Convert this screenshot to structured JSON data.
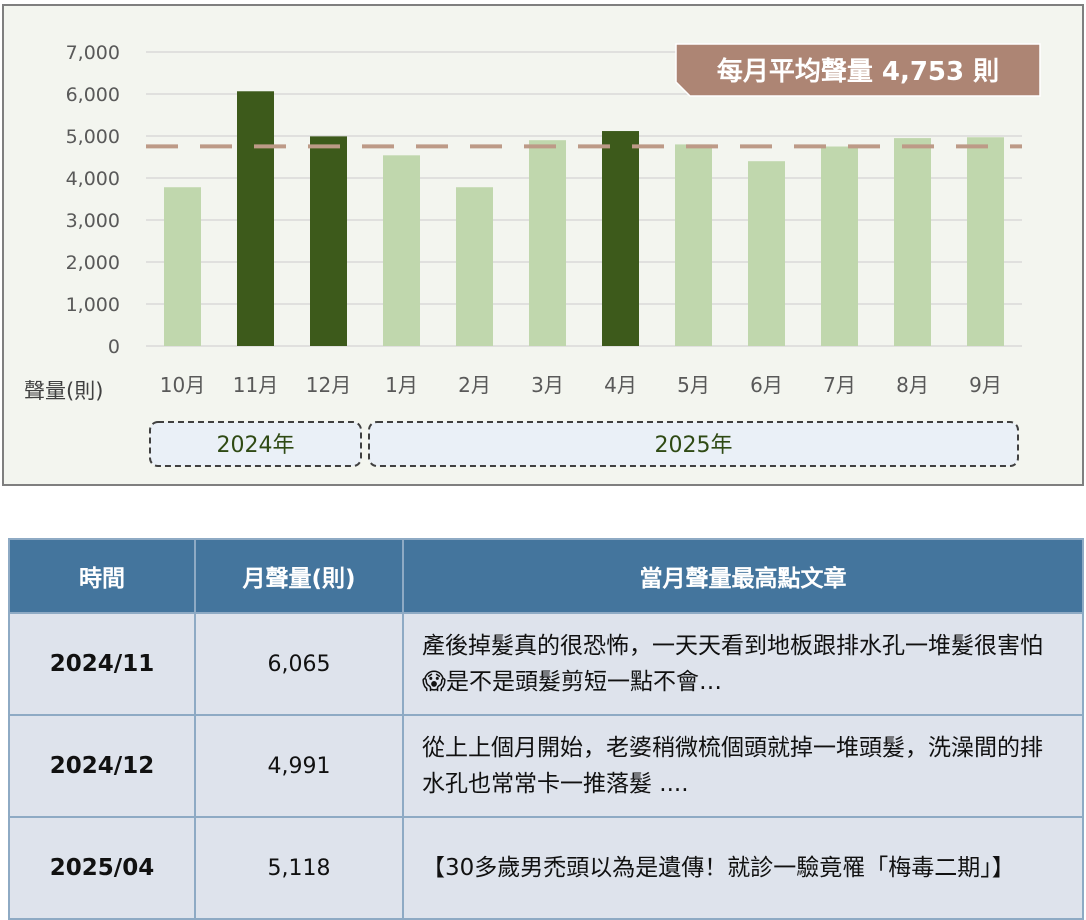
{
  "chart_data": {
    "type": "bar",
    "categories": [
      "10月",
      "11月",
      "12月",
      "1月",
      "2月",
      "3月",
      "4月",
      "5月",
      "6月",
      "7月",
      "8月",
      "9月"
    ],
    "values": [
      3780,
      6065,
      4991,
      4540,
      3780,
      4900,
      5118,
      4800,
      4400,
      4750,
      4950,
      4970
    ],
    "highlighted": [
      false,
      true,
      true,
      false,
      false,
      false,
      true,
      false,
      false,
      false,
      false,
      false
    ],
    "y_ticks": [
      "0",
      "1,000",
      "2,000",
      "3,000",
      "4,000",
      "5,000",
      "6,000",
      "7,000"
    ],
    "ylim": [
      0,
      7000
    ],
    "ylabel": "聲量(則)",
    "average_value": 4753,
    "average_label": "每月平均聲量 4,753 則",
    "year_groups": [
      {
        "label": "2024年",
        "first": 0,
        "last": 2
      },
      {
        "label": "2025年",
        "first": 3,
        "last": 11
      }
    ],
    "grid": true,
    "colors": {
      "bar_normal": "#c0d7ad",
      "bar_highlight": "#3d5a1b",
      "average_line": "#bd9a87",
      "average_badge": "#ad8574",
      "year_box_fill": "#eaf0f7",
      "panel_background": "#f3f5ef"
    }
  },
  "table": {
    "headers": [
      "時間",
      "月聲量(則)",
      "當月聲量最高點文章"
    ],
    "rows": [
      {
        "period": "2024/11",
        "volume": "6,065",
        "article": "產後掉髮真的很恐怖，一天天看到地板跟排水孔一堆髮很害怕😱是不是頭髮剪短一點不會…"
      },
      {
        "period": "2024/12",
        "volume": "4,991",
        "article": "從上上個月開始，老婆稍微梳個頭就掉一堆頭髮，洗澡間的排水孔也常常卡一推落髮 ...."
      },
      {
        "period": "2025/04",
        "volume": "5,118",
        "article": "【30多歲男禿頭以為是遺傳！就診一驗竟罹「梅毒二期」】"
      }
    ]
  }
}
